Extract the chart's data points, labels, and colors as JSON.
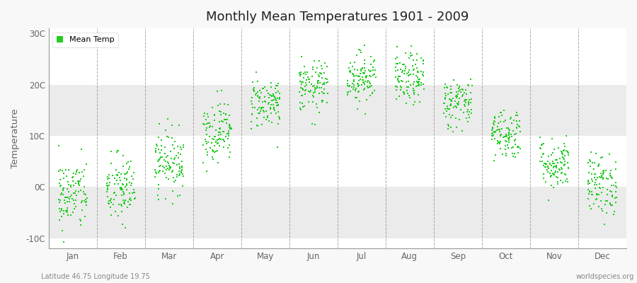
{
  "title": "Monthly Mean Temperatures 1901 - 2009",
  "ylabel": "Temperature",
  "yticks": [
    -10,
    0,
    10,
    20,
    30
  ],
  "ytick_labels": [
    "-10C",
    "0C",
    "10C",
    "20C",
    "30C"
  ],
  "ylim": [
    -12,
    31
  ],
  "xlim": [
    0.5,
    12.5
  ],
  "dot_color": "#22cc22",
  "dot_size": 3,
  "legend_label": "Mean Temp",
  "bottom_left_text": "Latitude 46.75 Longitude 19.75",
  "bottom_right_text": "worldspecies.org",
  "months": [
    "Jan",
    "Feb",
    "Mar",
    "Apr",
    "May",
    "Jun",
    "Jul",
    "Aug",
    "Sep",
    "Oct",
    "Nov",
    "Dec"
  ],
  "month_centers": [
    1,
    2,
    3,
    4,
    5,
    6,
    7,
    8,
    9,
    10,
    11,
    12
  ],
  "mean_temps": [
    -1.5,
    -0.5,
    5.0,
    11.0,
    16.5,
    19.5,
    21.5,
    21.0,
    16.5,
    10.5,
    4.5,
    0.5
  ],
  "std_temps": [
    3.5,
    3.5,
    3.0,
    3.0,
    2.5,
    2.5,
    2.5,
    2.5,
    2.5,
    2.5,
    2.5,
    3.0
  ],
  "n_years": 109,
  "fig_bg_color": "#f8f8f8",
  "band_colors": [
    "#ffffff",
    "#ebebeb"
  ],
  "grid_color": "#888888",
  "tick_color": "#666666",
  "seed": 42
}
